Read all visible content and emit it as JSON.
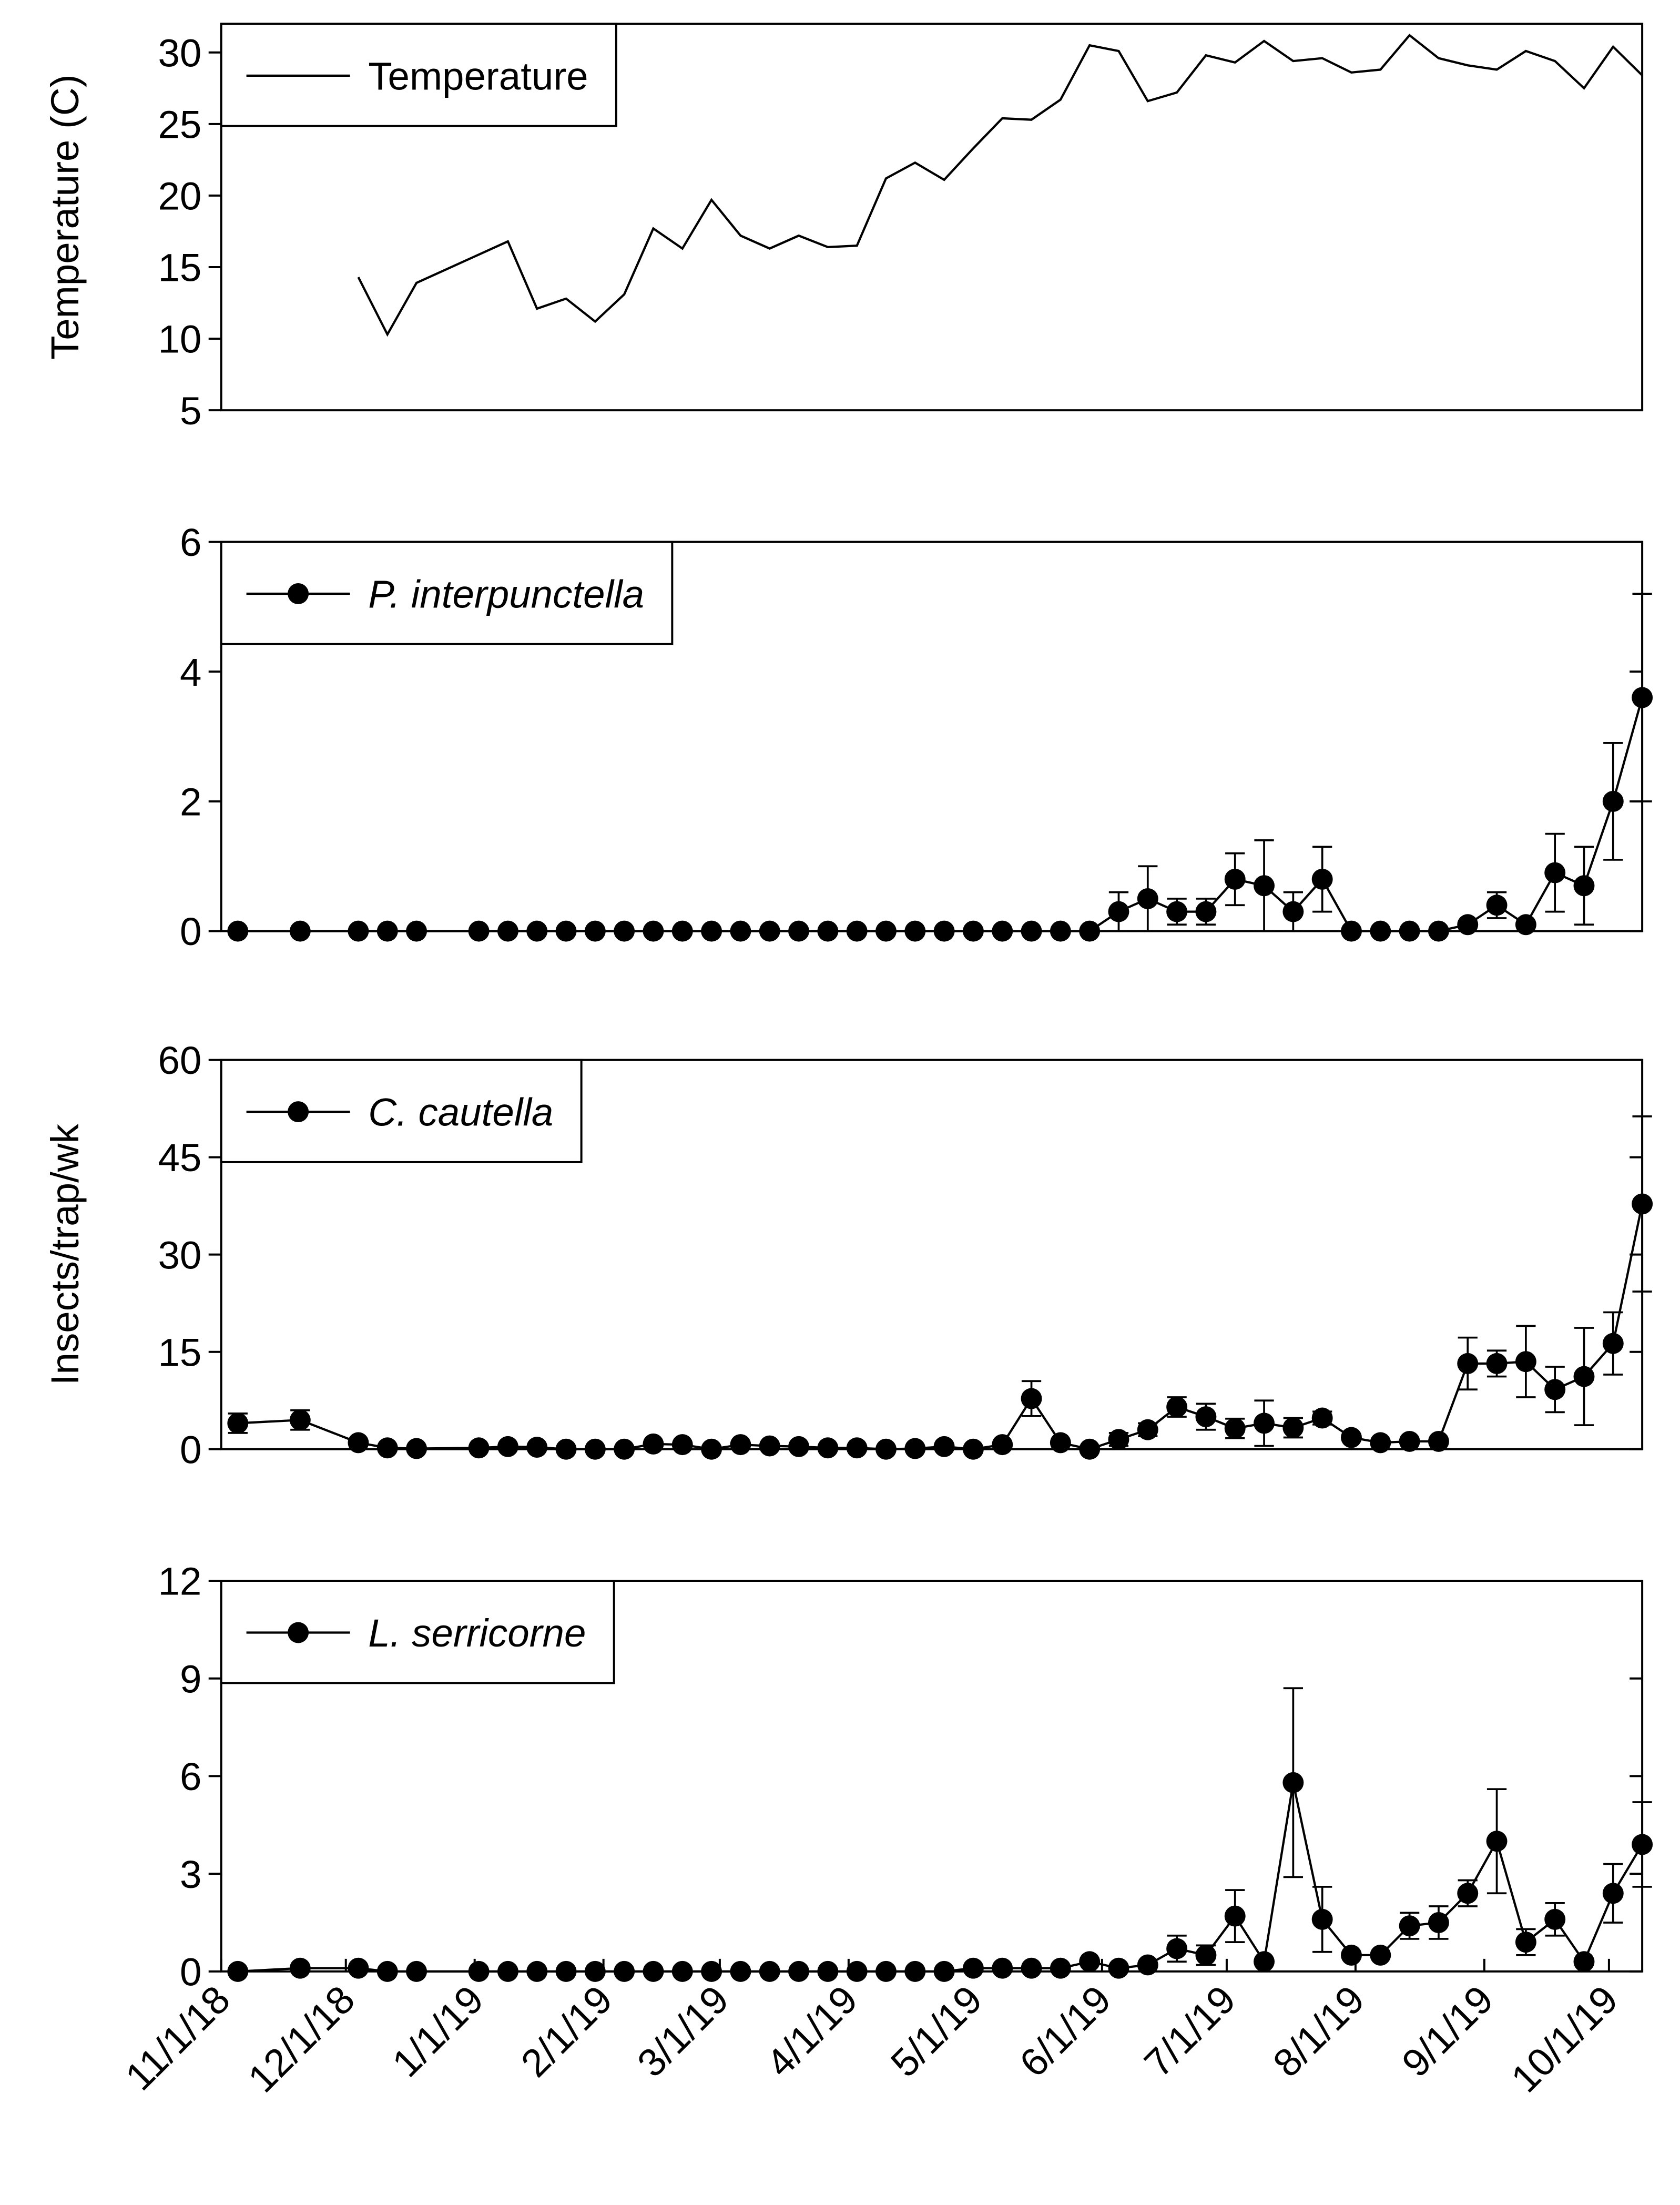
{
  "chart_data": [
    {
      "type": "line",
      "ylabel": "Temperature (C)",
      "xlim": [
        "11/1/18",
        "10/9/19"
      ],
      "ylim": [
        5,
        32
      ],
      "yticks": [
        5,
        10,
        15,
        20,
        25,
        30
      ],
      "x": [
        "12/4/18",
        "12/11/18",
        "12/18/18",
        "1/9/19",
        "1/16/19",
        "1/23/19",
        "1/30/19",
        "2/6/19",
        "2/13/19",
        "2/20/19",
        "2/27/19",
        "3/6/19",
        "3/13/19",
        "3/20/19",
        "3/27/19",
        "4/3/19",
        "4/10/19",
        "4/17/19",
        "4/24/19",
        "5/1/19",
        "5/8/19",
        "5/15/19",
        "5/22/19",
        "5/29/19",
        "6/5/19",
        "6/12/19",
        "6/19/19",
        "6/26/19",
        "7/3/19",
        "7/10/19",
        "7/17/19",
        "7/24/19",
        "7/31/19",
        "8/7/19",
        "8/14/19",
        "8/21/19",
        "8/28/19",
        "9/4/19",
        "9/11/19",
        "9/18/19",
        "9/25/19",
        "10/2/19",
        "10/9/19"
      ],
      "series": [
        {
          "name": "Temperature",
          "color": "#000000",
          "values": [
            14.3,
            10.3,
            13.9,
            16.8,
            12.1,
            12.8,
            11.2,
            13.1,
            17.7,
            16.3,
            19.7,
            17.2,
            16.3,
            17.2,
            16.4,
            16.5,
            21.2,
            22.3,
            21.1,
            23.3,
            25.4,
            25.3,
            26.7,
            30.5,
            30.1,
            26.6,
            27.2,
            29.8,
            29.3,
            30.8,
            29.4,
            29.6,
            28.6,
            28.8,
            31.2,
            29.6,
            29.1,
            28.8,
            30.1,
            29.4,
            27.5,
            30.4,
            28.4
          ]
        }
      ]
    },
    {
      "type": "line",
      "xlim": [
        "11/1/18",
        "10/9/19"
      ],
      "ylim": [
        0,
        6
      ],
      "yticks": [
        0,
        2,
        4,
        6
      ],
      "x": [
        "11/5/18",
        "11/20/18",
        "12/4/18",
        "12/11/18",
        "12/18/18",
        "1/2/19",
        "1/9/19",
        "1/16/19",
        "1/23/19",
        "1/30/19",
        "2/6/19",
        "2/13/19",
        "2/20/19",
        "2/27/19",
        "3/6/19",
        "3/13/19",
        "3/20/19",
        "3/27/19",
        "4/3/19",
        "4/10/19",
        "4/17/19",
        "4/24/19",
        "5/1/19",
        "5/8/19",
        "5/15/19",
        "5/22/19",
        "5/29/19",
        "6/5/19",
        "6/12/19",
        "6/19/19",
        "6/26/19",
        "7/3/19",
        "7/10/19",
        "7/17/19",
        "7/24/19",
        "7/31/19",
        "8/7/19",
        "8/14/19",
        "8/21/19",
        "8/28/19",
        "9/4/19",
        "9/11/19",
        "9/18/19",
        "9/25/19",
        "10/2/19",
        "10/9/19"
      ],
      "series": [
        {
          "name": "P. interpunctella",
          "color": "#000000",
          "marker": "circle",
          "font_style": "italic",
          "values": [
            0,
            0,
            0,
            0,
            0,
            0,
            0,
            0,
            0,
            0,
            0,
            0,
            0,
            0,
            0,
            0,
            0,
            0,
            0,
            0,
            0,
            0,
            0,
            0,
            0,
            0,
            0,
            0.3,
            0.5,
            0.3,
            0.3,
            0.8,
            0.7,
            0.3,
            0.8,
            0,
            0,
            0,
            0,
            0.1,
            0.4,
            0.1,
            0.9,
            0.7,
            2.0,
            3.6
          ],
          "errors": [
            0,
            0,
            0,
            0,
            0,
            0,
            0,
            0,
            0,
            0,
            0,
            0,
            0,
            0,
            0,
            0,
            0,
            0,
            0,
            0,
            0,
            0,
            0,
            0,
            0,
            0,
            0,
            0.3,
            0.5,
            0.2,
            0.2,
            0.4,
            0.7,
            0.3,
            0.5,
            0,
            0,
            0,
            0,
            0,
            0.2,
            0,
            0.6,
            0.6,
            0.9,
            1.6
          ]
        }
      ]
    },
    {
      "type": "line",
      "ylabel": "Insects/trap/wk",
      "xlim": [
        "11/1/18",
        "10/9/19"
      ],
      "ylim": [
        0,
        60
      ],
      "yticks": [
        0,
        15,
        30,
        45,
        60
      ],
      "x": [
        "11/5/18",
        "11/20/18",
        "12/4/18",
        "12/11/18",
        "12/18/18",
        "1/2/19",
        "1/9/19",
        "1/16/19",
        "1/23/19",
        "1/30/19",
        "2/6/19",
        "2/13/19",
        "2/20/19",
        "2/27/19",
        "3/6/19",
        "3/13/19",
        "3/20/19",
        "3/27/19",
        "4/3/19",
        "4/10/19",
        "4/17/19",
        "4/24/19",
        "5/1/19",
        "5/8/19",
        "5/15/19",
        "5/22/19",
        "5/29/19",
        "6/5/19",
        "6/12/19",
        "6/19/19",
        "6/26/19",
        "7/3/19",
        "7/10/19",
        "7/17/19",
        "7/24/19",
        "7/31/19",
        "8/7/19",
        "8/14/19",
        "8/21/19",
        "8/28/19",
        "9/4/19",
        "9/11/19",
        "9/18/19",
        "9/25/19",
        "10/2/19",
        "10/9/19"
      ],
      "series": [
        {
          "name": "C. cautella",
          "color": "#000000",
          "marker": "circle",
          "font_style": "italic",
          "values": [
            4,
            4.5,
            1,
            0.2,
            0.1,
            0.2,
            0.4,
            0.3,
            0,
            0,
            0,
            0.8,
            0.7,
            0,
            0.7,
            0.5,
            0.4,
            0.2,
            0.2,
            0,
            0.1,
            0.4,
            0,
            0.7,
            7.8,
            1,
            0,
            1.5,
            3,
            6.5,
            5,
            3.2,
            4,
            3.3,
            4.8,
            1.8,
            1,
            1.2,
            1.2,
            13.2,
            13.2,
            13.5,
            9.2,
            11.2,
            16.3,
            37.8
          ],
          "errors": [
            1.5,
            1.5,
            0,
            0,
            0,
            0,
            0,
            0,
            0,
            0,
            0,
            0,
            0,
            0,
            0,
            0,
            0,
            0,
            0,
            0,
            0,
            0,
            0,
            0,
            2.7,
            0,
            0,
            1,
            1,
            1.5,
            2,
            1.5,
            3.5,
            1.5,
            1,
            0,
            0,
            0,
            0,
            4,
            2,
            5.5,
            3.5,
            7.5,
            4.8,
            13.5
          ]
        }
      ]
    },
    {
      "type": "line",
      "xlim": [
        "11/1/18",
        "10/9/19"
      ],
      "ylim": [
        0,
        12
      ],
      "yticks": [
        0,
        3,
        6,
        9,
        12
      ],
      "xticks": [
        "11/1/18",
        "12/1/18",
        "1/1/19",
        "2/1/19",
        "3/1/19",
        "4/1/19",
        "5/1/19",
        "6/1/19",
        "7/1/19",
        "8/1/19",
        "9/1/19",
        "10/1/19"
      ],
      "x": [
        "11/5/18",
        "11/20/18",
        "12/4/18",
        "12/11/18",
        "12/18/18",
        "1/2/19",
        "1/9/19",
        "1/16/19",
        "1/23/19",
        "1/30/19",
        "2/6/19",
        "2/13/19",
        "2/20/19",
        "2/27/19",
        "3/6/19",
        "3/13/19",
        "3/20/19",
        "3/27/19",
        "4/3/19",
        "4/10/19",
        "4/17/19",
        "4/24/19",
        "5/1/19",
        "5/8/19",
        "5/15/19",
        "5/22/19",
        "5/29/19",
        "6/5/19",
        "6/12/19",
        "6/19/19",
        "6/26/19",
        "7/3/19",
        "7/10/19",
        "7/17/19",
        "7/24/19",
        "7/31/19",
        "8/7/19",
        "8/14/19",
        "8/21/19",
        "8/28/19",
        "9/4/19",
        "9/11/19",
        "9/18/19",
        "9/25/19",
        "10/2/19",
        "10/9/19"
      ],
      "series": [
        {
          "name": "L. serricorne",
          "color": "#000000",
          "marker": "circle",
          "font_style": "italic",
          "values": [
            0,
            0.1,
            0.1,
            0,
            0,
            0,
            0,
            0,
            0,
            0,
            0,
            0,
            0,
            0,
            0,
            0,
            0,
            0,
            0,
            0,
            0,
            0,
            0.1,
            0.1,
            0.1,
            0.1,
            0.3,
            0.1,
            0.2,
            0.7,
            0.5,
            1.7,
            0.3,
            5.8,
            1.6,
            0.5,
            0.5,
            1.4,
            1.5,
            2.4,
            4.0,
            0.9,
            1.6,
            0.3,
            2.4,
            3.9
          ],
          "errors": [
            0,
            0,
            0,
            0,
            0,
            0,
            0,
            0,
            0,
            0,
            0,
            0,
            0,
            0,
            0,
            0,
            0,
            0,
            0,
            0,
            0,
            0,
            0,
            0,
            0,
            0,
            0,
            0,
            0,
            0.4,
            0.3,
            0.8,
            0,
            2.9,
            1,
            0,
            0,
            0.4,
            0.5,
            0.4,
            1.6,
            0.4,
            0.5,
            0,
            0.9,
            1.3
          ]
        }
      ]
    }
  ]
}
